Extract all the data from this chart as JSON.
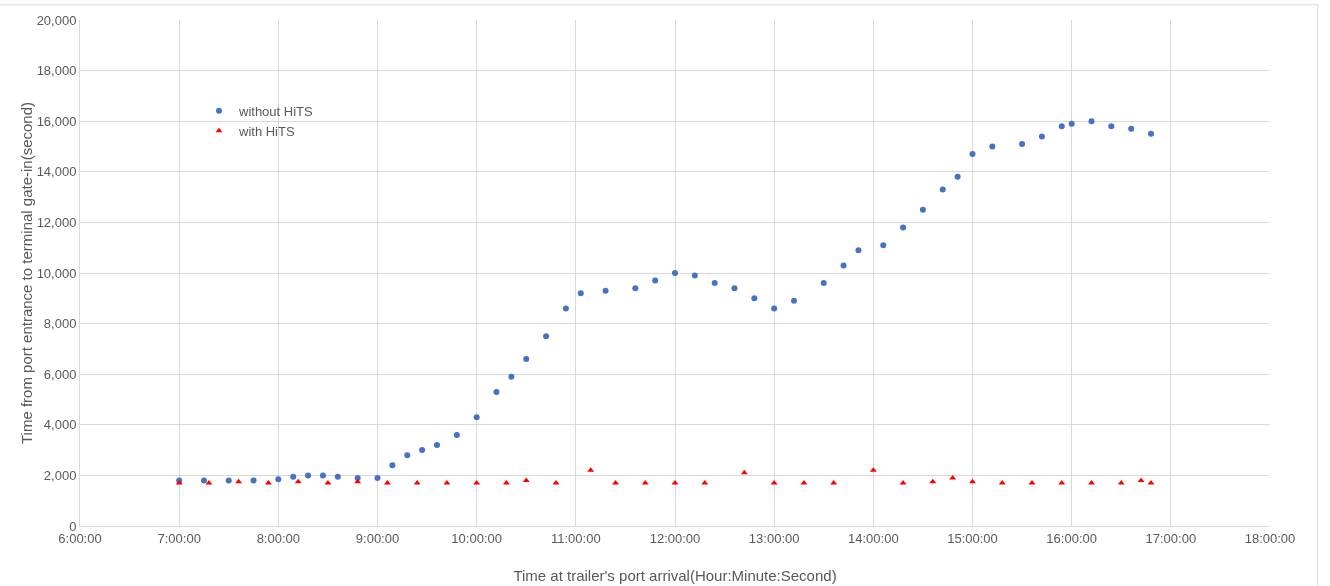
{
  "chart_data": {
    "type": "scatter",
    "xlabel": "Time at trailer's port arrival(Hour:Minute:Second)",
    "ylabel": "Time from port entrance to terminal gate-in(second)",
    "xlim": [
      6,
      18
    ],
    "xticks": [
      {
        "value": 6,
        "label": "6:00:00"
      },
      {
        "value": 7,
        "label": "7:00:00"
      },
      {
        "value": 8,
        "label": "8:00:00"
      },
      {
        "value": 9,
        "label": "9:00:00"
      },
      {
        "value": 10,
        "label": "10:00:00"
      },
      {
        "value": 11,
        "label": "11:00:00"
      },
      {
        "value": 12,
        "label": "12:00:00"
      },
      {
        "value": 13,
        "label": "13:00:00"
      },
      {
        "value": 14,
        "label": "14:00:00"
      },
      {
        "value": 15,
        "label": "15:00:00"
      },
      {
        "value": 16,
        "label": "16:00:00"
      },
      {
        "value": 17,
        "label": "17:00:00"
      },
      {
        "value": 18,
        "label": "18:00:00"
      }
    ],
    "ylim": [
      0,
      20000
    ],
    "yticks": [
      {
        "value": 0,
        "label": "0"
      },
      {
        "value": 2000,
        "label": "2,000"
      },
      {
        "value": 4000,
        "label": "4,000"
      },
      {
        "value": 6000,
        "label": "6,000"
      },
      {
        "value": 8000,
        "label": "8,000"
      },
      {
        "value": 10000,
        "label": "10,000"
      },
      {
        "value": 12000,
        "label": "12,000"
      },
      {
        "value": 14000,
        "label": "14,000"
      },
      {
        "value": 16000,
        "label": "16,000"
      },
      {
        "value": 18000,
        "label": "18,000"
      },
      {
        "value": 20000,
        "label": "20,000"
      }
    ],
    "grid": true,
    "legend": "top left",
    "series": [
      {
        "name": "without HiTS",
        "color": "#4472c4",
        "marker": "circle",
        "x": [
          7.0,
          7.25,
          7.5,
          7.75,
          8.0,
          8.15,
          8.3,
          8.45,
          8.6,
          8.8,
          9.0,
          9.15,
          9.3,
          9.45,
          9.6,
          9.8,
          10.0,
          10.2,
          10.35,
          10.5,
          10.7,
          10.9,
          11.05,
          11.3,
          11.6,
          11.8,
          12.0,
          12.2,
          12.4,
          12.6,
          12.8,
          13.0,
          13.2,
          13.5,
          13.7,
          13.85,
          14.1,
          14.3,
          14.5,
          14.7,
          14.85,
          15.0,
          15.2,
          15.5,
          15.7,
          15.9,
          16.0,
          16.2,
          16.4,
          16.6,
          16.8
        ],
        "values": [
          1800,
          1800,
          1800,
          1800,
          1850,
          1950,
          2000,
          2000,
          1950,
          1900,
          1900,
          2400,
          2800,
          3000,
          3200,
          3600,
          4300,
          5300,
          5900,
          6600,
          7500,
          8600,
          9200,
          9300,
          9400,
          9700,
          10000,
          9900,
          9600,
          9400,
          9000,
          8600,
          8900,
          9600,
          10300,
          10900,
          11100,
          11800,
          12500,
          13300,
          13800,
          14700,
          15000,
          15100,
          15400,
          15800,
          15900,
          16000,
          15800,
          15700,
          15500
        ]
      },
      {
        "name": "with HiTS",
        "color": "#ff0000",
        "marker": "triangle",
        "x": [
          7.0,
          7.3,
          7.6,
          7.9,
          8.2,
          8.5,
          8.8,
          9.1,
          9.4,
          9.7,
          10.0,
          10.3,
          10.5,
          10.8,
          11.15,
          11.4,
          11.7,
          12.0,
          12.3,
          12.7,
          13.0,
          13.3,
          13.6,
          14.0,
          14.3,
          14.6,
          14.8,
          15.0,
          15.3,
          15.6,
          15.9,
          16.2,
          16.5,
          16.7,
          16.8
        ],
        "values": [
          1700,
          1700,
          1750,
          1700,
          1750,
          1700,
          1750,
          1700,
          1700,
          1700,
          1700,
          1700,
          1800,
          1700,
          2200,
          1700,
          1700,
          1700,
          1700,
          2100,
          1700,
          1700,
          1700,
          2200,
          1700,
          1750,
          1900,
          1750,
          1700,
          1700,
          1700,
          1700,
          1700,
          1800,
          1700
        ]
      }
    ]
  }
}
